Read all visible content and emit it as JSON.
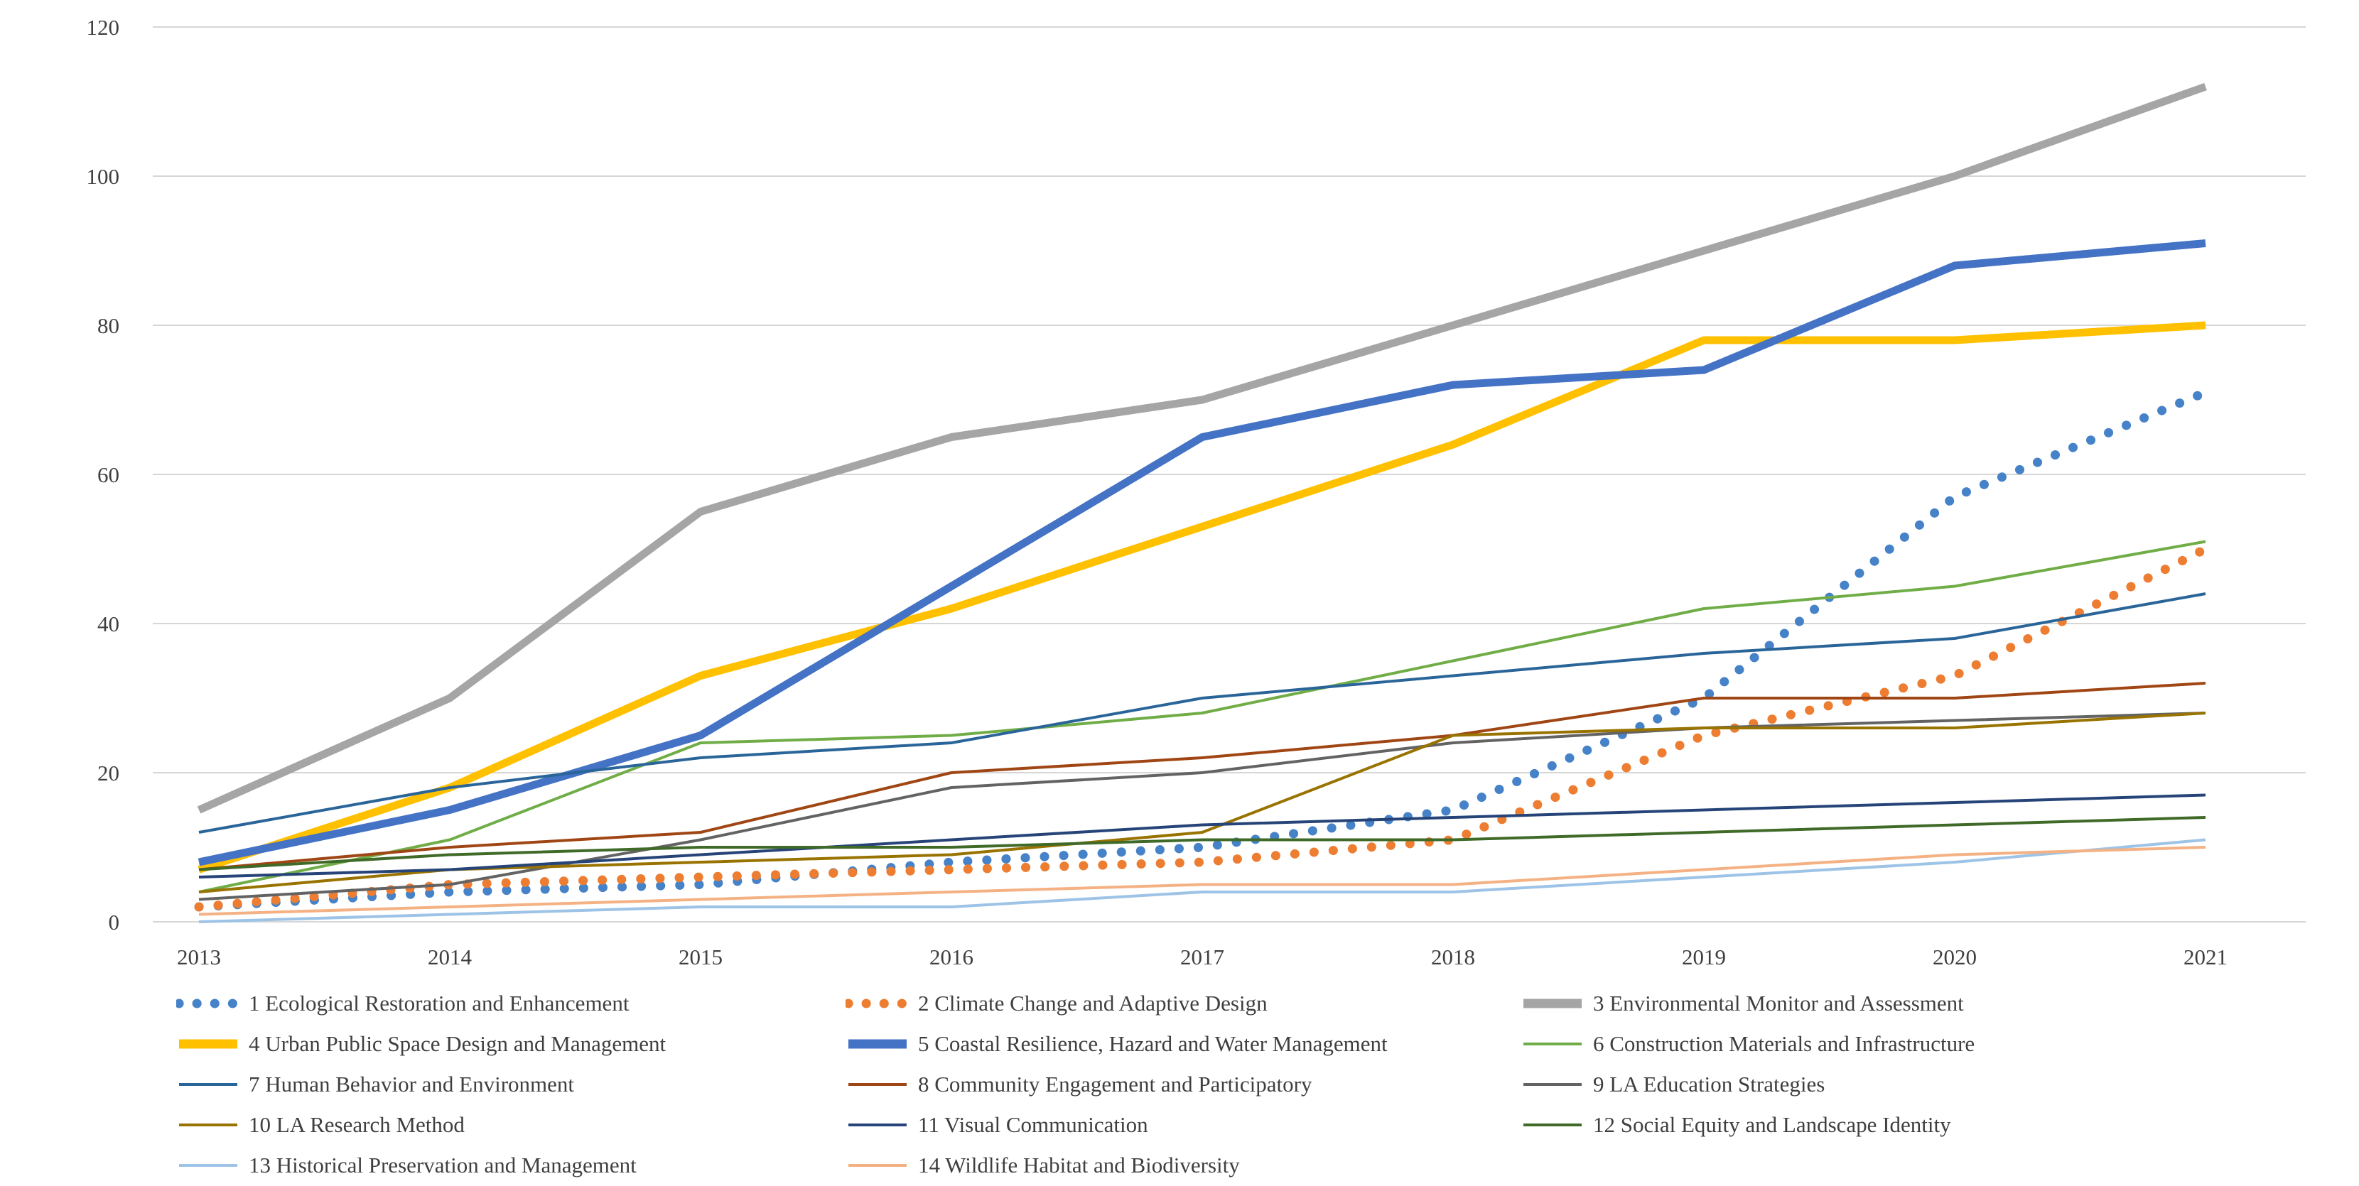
{
  "chart_data": {
    "type": "line",
    "title": "",
    "xlabel": "",
    "ylabel": "",
    "categories": [
      "2013",
      "2014",
      "2015",
      "2016",
      "2017",
      "2018",
      "2019",
      "2020",
      "2021"
    ],
    "ylim": [
      0,
      120
    ],
    "y_ticks": [
      0,
      20,
      40,
      60,
      80,
      100,
      120
    ],
    "grid": "horizontal",
    "gridline_color": "#d6d6d6",
    "text_color": "#3f3f3f",
    "legend_position": "bottom",
    "series": [
      {
        "label": "1 Ecological Restoration and Enhancement",
        "color": "#4682C8",
        "style": "dotted",
        "weight": "thick",
        "values": [
          2,
          4,
          5,
          8,
          10,
          15,
          30,
          57,
          71
        ]
      },
      {
        "label": "2 Climate Change and Adaptive Design",
        "color": "#ED7D31",
        "style": "dotted",
        "weight": "thick",
        "values": [
          2,
          5,
          6,
          7,
          8,
          11,
          25,
          33,
          50
        ]
      },
      {
        "label": "3 Environmental Monitor and Assessment",
        "color": "#A5A5A5",
        "style": "solid",
        "weight": "thick",
        "values": [
          15,
          30,
          55,
          65,
          70,
          80,
          90,
          100,
          112
        ]
      },
      {
        "label": "4 Urban Public Space Design  and Management",
        "color": "#FFC000",
        "style": "solid",
        "weight": "thick",
        "values": [
          7,
          18,
          33,
          42,
          53,
          64,
          78,
          78,
          80
        ]
      },
      {
        "label": "5 Coastal Resilience, Hazard and Water Management",
        "color": "#4472C4",
        "style": "solid",
        "weight": "thick",
        "values": [
          8,
          15,
          25,
          45,
          65,
          72,
          74,
          88,
          91
        ]
      },
      {
        "label": "6 Construction Materials and Infrastructure",
        "color": "#70AD47",
        "style": "solid",
        "weight": "thin",
        "values": [
          4,
          11,
          24,
          25,
          28,
          35,
          42,
          45,
          51
        ]
      },
      {
        "label": "7 Human Behavior and Environment",
        "color": "#2A6599",
        "style": "solid",
        "weight": "thin",
        "values": [
          12,
          18,
          22,
          24,
          30,
          33,
          36,
          38,
          44
        ]
      },
      {
        "label": "8 Community Engagement and Participatory",
        "color": "#A04614",
        "style": "solid",
        "weight": "thin",
        "values": [
          7,
          10,
          12,
          20,
          22,
          25,
          30,
          30,
          32
        ]
      },
      {
        "label": "9 LA Education Strategies",
        "color": "#636363",
        "style": "solid",
        "weight": "thin",
        "values": [
          3,
          5,
          11,
          18,
          20,
          24,
          26,
          27,
          28
        ]
      },
      {
        "label": "10 LA Research Method",
        "color": "#997300",
        "style": "solid",
        "weight": "thin",
        "values": [
          4,
          7,
          8,
          9,
          12,
          25,
          26,
          26,
          28
        ]
      },
      {
        "label": "11 Visual Communication",
        "color": "#264478",
        "style": "solid",
        "weight": "thin",
        "values": [
          6,
          7,
          9,
          11,
          13,
          14,
          15,
          16,
          17
        ]
      },
      {
        "label": "12 Social Equity and Landscape Identity",
        "color": "#3F6A28",
        "style": "solid",
        "weight": "thin",
        "values": [
          7,
          9,
          10,
          10,
          11,
          11,
          12,
          13,
          14
        ]
      },
      {
        "label": "13 Historical Preservation and Management",
        "color": "#9DC3E6",
        "style": "solid",
        "weight": "thin",
        "values": [
          0,
          1,
          2,
          2,
          4,
          4,
          6,
          8,
          11
        ]
      },
      {
        "label": "14 Wildlife Habitat and Biodiversity",
        "color": "#F4B183",
        "style": "solid",
        "weight": "thin",
        "values": [
          1,
          2,
          3,
          4,
          5,
          5,
          7,
          9,
          10
        ]
      }
    ]
  }
}
